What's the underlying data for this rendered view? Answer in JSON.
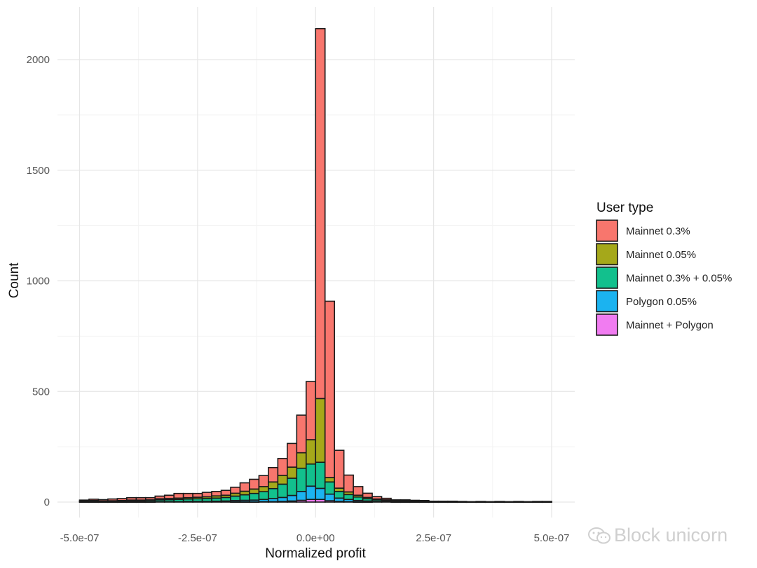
{
  "chart_data": {
    "type": "bar",
    "subtype": "stacked-histogram",
    "xlabel": "Normalized profit",
    "ylabel": "Count",
    "xlim": [
      -5e-07,
      5e-07
    ],
    "ylim": [
      0,
      2200
    ],
    "x_ticks": [
      -5e-07,
      -2.5e-07,
      0.0,
      2.5e-07,
      5e-07
    ],
    "x_tick_labels": [
      "-5.0e-07",
      "-2.5e-07",
      "0.0e+00",
      "2.5e-07",
      "5.0e-07"
    ],
    "y_ticks": [
      0,
      500,
      1000,
      1500,
      2000
    ],
    "y_tick_labels": [
      "0",
      "500",
      "1000",
      "1500",
      "2000"
    ],
    "grid": true,
    "legend": {
      "title": "User type",
      "placement": "right"
    },
    "bin_width": 2e-08,
    "bin_centers": [
      -4.9e-07,
      -4.7e-07,
      -4.5e-07,
      -4.3e-07,
      -4.1e-07,
      -3.9e-07,
      -3.7e-07,
      -3.5e-07,
      -3.3e-07,
      -3.1e-07,
      -2.9e-07,
      -2.7e-07,
      -2.5e-07,
      -2.3e-07,
      -2.1e-07,
      -1.9e-07,
      -1.7e-07,
      -1.5e-07,
      -1.3e-07,
      -1.1e-07,
      -9e-08,
      -7e-08,
      -5e-08,
      -3e-08,
      -1e-08,
      1e-08,
      3e-08,
      5e-08,
      7e-08,
      9e-08,
      1.1e-07,
      1.3e-07,
      1.5e-07,
      1.7e-07,
      1.9e-07,
      2.1e-07,
      2.3e-07,
      2.5e-07,
      2.7e-07,
      2.9e-07,
      3.1e-07,
      3.3e-07,
      3.5e-07,
      3.7e-07,
      3.9e-07,
      4.1e-07,
      4.3e-07,
      4.5e-07,
      4.7e-07,
      4.9e-07
    ],
    "series": [
      {
        "name": "Mainnet + Polygon",
        "color": "#F17CF1",
        "values": [
          0,
          0,
          0,
          0,
          0,
          0,
          0,
          0,
          0,
          0,
          0,
          0,
          0,
          0,
          0,
          0,
          1,
          1,
          1,
          2,
          2,
          3,
          5,
          8,
          12,
          12,
          6,
          3,
          2,
          1,
          1,
          0,
          0,
          0,
          0,
          0,
          0,
          0,
          0,
          0,
          0,
          0,
          0,
          0,
          0,
          0,
          0,
          0,
          0,
          0
        ]
      },
      {
        "name": "Polygon 0.05%",
        "color": "#1BB3F0",
        "values": [
          1,
          1,
          1,
          1,
          1,
          1,
          1,
          1,
          2,
          2,
          2,
          3,
          3,
          3,
          4,
          5,
          6,
          7,
          8,
          10,
          14,
          18,
          25,
          40,
          60,
          50,
          30,
          15,
          10,
          6,
          4,
          3,
          2,
          1,
          1,
          1,
          1,
          0,
          0,
          0,
          0,
          0,
          0,
          0,
          0,
          0,
          0,
          0,
          0,
          0
        ]
      },
      {
        "name": "Mainnet 0.3% + 0.05%",
        "color": "#12C08D",
        "values": [
          3,
          4,
          3,
          3,
          4,
          5,
          5,
          6,
          8,
          9,
          10,
          11,
          12,
          13,
          14,
          16,
          20,
          25,
          30,
          35,
          45,
          60,
          78,
          105,
          100,
          118,
          55,
          30,
          22,
          16,
          10,
          7,
          5,
          3,
          3,
          2,
          2,
          1,
          1,
          1,
          1,
          0,
          1,
          0,
          1,
          0,
          1,
          0,
          1,
          1
        ]
      },
      {
        "name": "Mainnet 0.05%",
        "color": "#A5A81A",
        "values": [
          1,
          2,
          1,
          2,
          2,
          3,
          3,
          3,
          5,
          5,
          6,
          6,
          7,
          8,
          10,
          10,
          13,
          16,
          20,
          23,
          30,
          40,
          50,
          70,
          110,
          288,
          20,
          15,
          12,
          8,
          6,
          4,
          3,
          2,
          2,
          2,
          1,
          1,
          1,
          1,
          1,
          1,
          1,
          1,
          1,
          1,
          1,
          1,
          1,
          1
        ]
      },
      {
        "name": "Mainnet 0.3%",
        "color": "#F8766D",
        "values": [
          4,
          6,
          6,
          8,
          9,
          11,
          11,
          10,
          12,
          15,
          21,
          19,
          17,
          20,
          20,
          22,
          27,
          38,
          44,
          50,
          65,
          76,
          107,
          170,
          263,
          1672,
          797,
          171,
          76,
          39,
          19,
          11,
          7,
          4,
          4,
          3,
          3,
          2,
          2,
          2,
          1,
          1,
          1,
          1,
          1,
          1,
          1,
          1,
          1,
          1
        ]
      }
    ]
  },
  "legend_order": [
    "Mainnet 0.3%",
    "Mainnet 0.05%",
    "Mainnet 0.3% + 0.05%",
    "Polygon 0.05%",
    "Mainnet + Polygon"
  ],
  "legend_colors": [
    "#F8766D",
    "#A5A81A",
    "#12C08D",
    "#1BB3F0",
    "#F17CF1"
  ],
  "watermark": {
    "text": "Block unicorn",
    "icon": "wechat-icon"
  }
}
